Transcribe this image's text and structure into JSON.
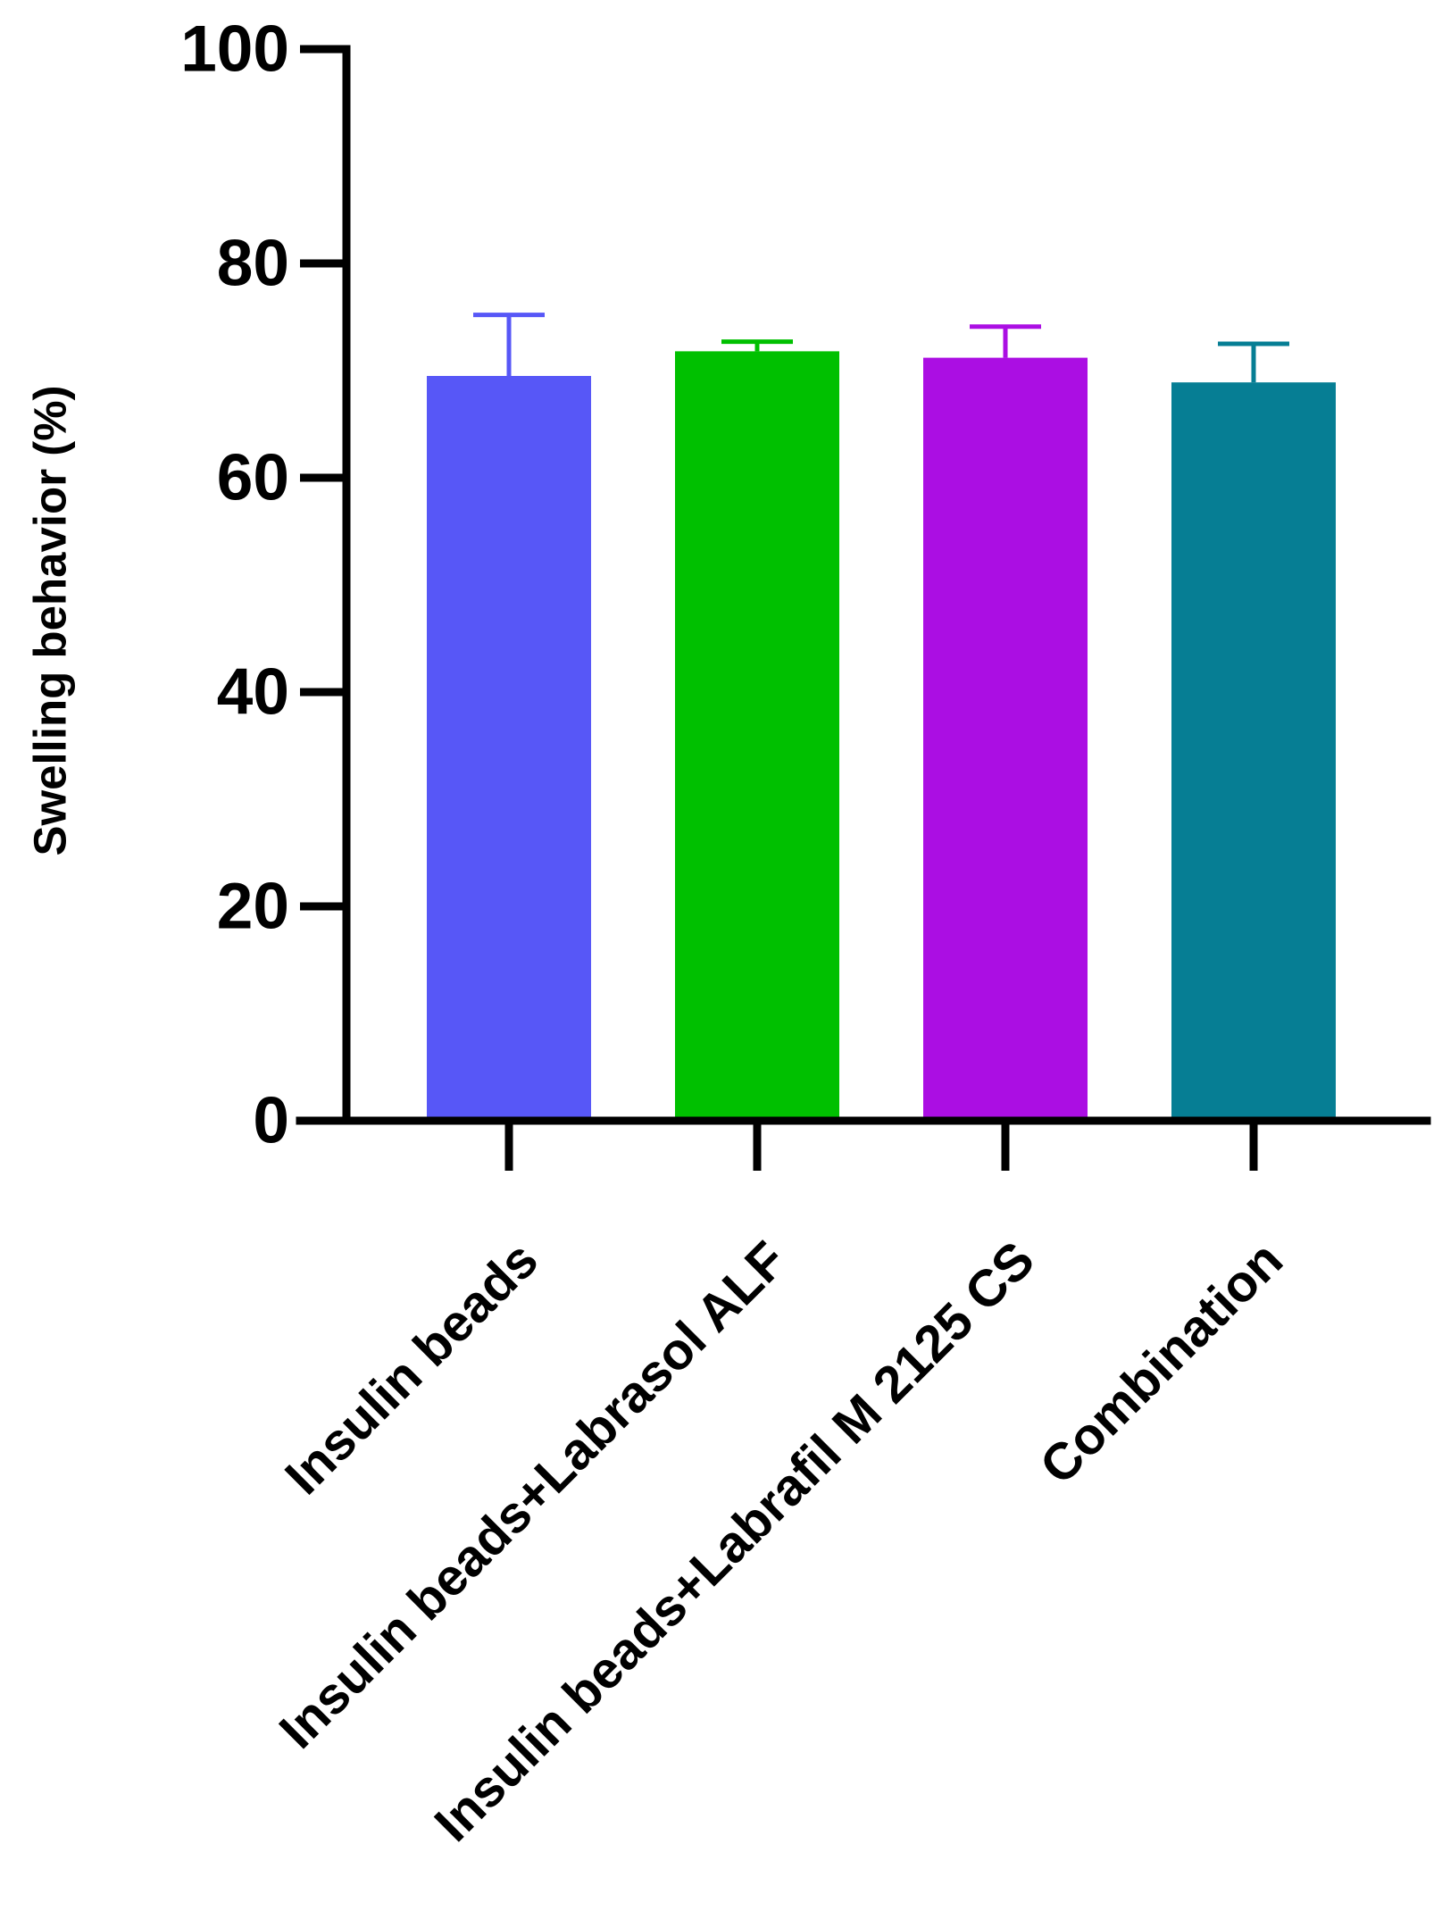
{
  "chart_data": {
    "type": "bar",
    "title": "",
    "xlabel": "",
    "ylabel": "Swelling behavior (%)",
    "ylim": [
      0,
      100
    ],
    "yticks": [
      0,
      20,
      40,
      60,
      80,
      100
    ],
    "yticks_text": [
      "0",
      "20",
      "40",
      "60",
      "80",
      "100"
    ],
    "categories": [
      "Insulin beads",
      "Insulin beads+Labrasol ALF",
      "Insulin beads+Labrafil M 2125 CS",
      "Combination"
    ],
    "values": [
      69.5,
      71.8,
      71.2,
      68.9
    ],
    "errors": [
      5.7,
      0.9,
      2.9,
      3.6
    ],
    "colors": [
      "#5757f7",
      "#00c000",
      "#ab0ee3",
      "#067e94"
    ],
    "grid": false,
    "legend": "none"
  }
}
